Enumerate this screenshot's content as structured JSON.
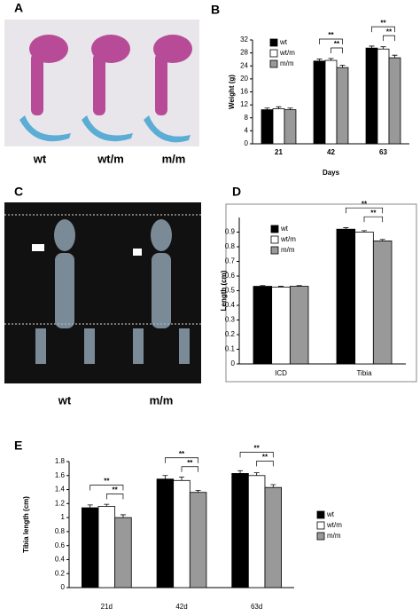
{
  "image_panels": [
    {
      "label": "A",
      "captions": [
        "wt",
        "wt/m",
        "m/m"
      ]
    },
    {
      "label": "C",
      "captions": [
        "wt",
        "m/m"
      ]
    }
  ],
  "chart_data": [
    {
      "type": "bar",
      "label": "B",
      "x_label": "Days",
      "y_label": "Weight (g)",
      "categories": [
        "21",
        "42",
        "63"
      ],
      "series": [
        {
          "name": "wt",
          "color": "#000000",
          "values": [
            10.5,
            25.5,
            29.5
          ],
          "errors": [
            0.5,
            0.6,
            0.6
          ]
        },
        {
          "name": "wt/m",
          "color": "#ffffff",
          "values": [
            10.8,
            25.7,
            29.2
          ],
          "errors": [
            0.6,
            0.6,
            0.7
          ]
        },
        {
          "name": "m/m",
          "color": "#999999",
          "values": [
            10.5,
            23.5,
            26.5
          ],
          "errors": [
            0.5,
            0.7,
            0.8
          ]
        }
      ],
      "ylim": [
        0,
        32
      ],
      "yticks": [
        0,
        4,
        8,
        12,
        16,
        20,
        24,
        28,
        32
      ],
      "annotations": [
        "**",
        "**",
        "**",
        "**"
      ]
    },
    {
      "type": "bar",
      "label": "D",
      "y_label": "Length (cm)",
      "categories": [
        "ICD",
        "Tibia"
      ],
      "series": [
        {
          "name": "wt",
          "color": "#000000",
          "values": [
            0.53,
            0.92
          ],
          "errors": [
            0.005,
            0.01
          ]
        },
        {
          "name": "wt/m",
          "color": "#ffffff",
          "values": [
            0.525,
            0.9
          ],
          "errors": [
            0.005,
            0.01
          ]
        },
        {
          "name": "m/m",
          "color": "#999999",
          "values": [
            0.53,
            0.84
          ],
          "errors": [
            0.005,
            0.01
          ]
        }
      ],
      "ylim": [
        0,
        1.0
      ],
      "yticks": [
        0,
        0.1,
        0.2,
        0.3,
        0.4,
        0.5,
        0.6,
        0.7,
        0.8,
        0.9
      ],
      "annotations": [
        "**",
        "**"
      ]
    },
    {
      "type": "bar",
      "label": "E",
      "y_label": "Tibia length (cm)",
      "categories": [
        "21d",
        "42d",
        "63d"
      ],
      "series": [
        {
          "name": "wt",
          "color": "#000000",
          "values": [
            1.14,
            1.55,
            1.63
          ],
          "errors": [
            0.04,
            0.05,
            0.04
          ]
        },
        {
          "name": "wt/m",
          "color": "#ffffff",
          "values": [
            1.16,
            1.53,
            1.6
          ],
          "errors": [
            0.03,
            0.05,
            0.04
          ]
        },
        {
          "name": "m/m",
          "color": "#999999",
          "values": [
            1.0,
            1.36,
            1.43
          ],
          "errors": [
            0.04,
            0.03,
            0.04
          ]
        }
      ],
      "ylim": [
        0,
        1.8
      ],
      "yticks": [
        0,
        0.2,
        0.4,
        0.6,
        0.8,
        1,
        1.2,
        1.4,
        1.6,
        1.8
      ],
      "annotations": [
        "**",
        "**",
        "**",
        "**",
        "**",
        "**"
      ]
    }
  ]
}
